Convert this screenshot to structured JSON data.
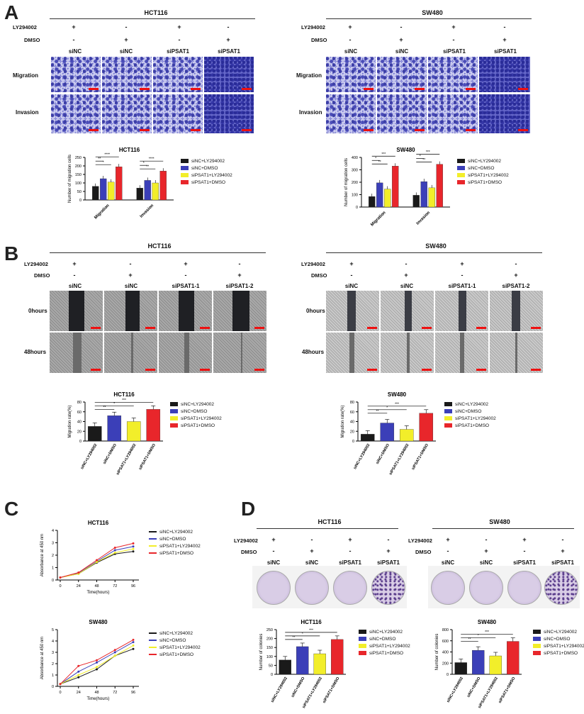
{
  "panels": {
    "a": "A",
    "b": "B",
    "c": "C",
    "d": "D"
  },
  "treatments": {
    "ly_label": "LY294002",
    "dmso_label": "DMSO",
    "ly_signs": [
      "+",
      "-",
      "+",
      "-"
    ],
    "dmso_signs": [
      "-",
      "+",
      "-",
      "+"
    ]
  },
  "A": {
    "hct_title": "HCT116",
    "sw_title": "SW480",
    "cols": [
      "siNC",
      "siNC",
      "siPSAT1",
      "siPSAT1"
    ],
    "rows": [
      "Migration",
      "Invasion"
    ]
  },
  "B": {
    "hct_title": "HCT116",
    "sw_title": "SW480",
    "cols": [
      "siNC",
      "siNC",
      "siPSAT1-1",
      "siPSAT1-2"
    ],
    "rows": [
      "0hours",
      "48hours"
    ]
  },
  "D": {
    "hct_title": "HCT116",
    "sw_title": "SW480",
    "cols": [
      "siNC",
      "siNC",
      "siPSAT1",
      "siPSAT1"
    ]
  },
  "legend": {
    "labels": [
      "siNC+LY294002",
      "siNC+DMSO",
      "siPSAT1+LY294002",
      "siPSAT1+DMSO"
    ],
    "colors": [
      "#1a1a1a",
      "#3b3fb8",
      "#f2ee2a",
      "#e8262b"
    ]
  },
  "chart_data": [
    {
      "type": "bar",
      "title": "HCT116",
      "xlabel": "",
      "ylabel": "Number of migration cells",
      "ylim": [
        0,
        250
      ],
      "yticks": [
        0,
        50,
        100,
        150,
        200,
        250
      ],
      "categories": [
        "Migration",
        "Invasion"
      ],
      "series": [
        {
          "name": "siNC+LY294002",
          "values": [
            80,
            70
          ]
        },
        {
          "name": "siNC+DMSO",
          "values": [
            125,
            115
          ]
        },
        {
          "name": "siPSAT1+LY294002",
          "values": [
            105,
            100
          ]
        },
        {
          "name": "siPSAT1+DMSO",
          "values": [
            195,
            170
          ]
        }
      ],
      "annotations": [
        "****",
        "**",
        "*",
        "****",
        "*",
        "**"
      ]
    },
    {
      "type": "bar",
      "title": "SW480",
      "xlabel": "",
      "ylabel": "Number of migration cells",
      "ylim": [
        0,
        400
      ],
      "yticks": [
        0,
        100,
        200,
        300,
        400
      ],
      "categories": [
        "Migration",
        "Invasion"
      ],
      "series": [
        {
          "name": "siNC+LY294002",
          "values": [
            85,
            95
          ]
        },
        {
          "name": "siNC+DMSO",
          "values": [
            195,
            205
          ]
        },
        {
          "name": "siPSAT1+LY294002",
          "values": [
            145,
            155
          ]
        },
        {
          "name": "siPSAT1+DMSO",
          "values": [
            330,
            345
          ]
        }
      ],
      "annotations": [
        "***",
        "*",
        "**",
        "***",
        "*",
        "**"
      ]
    },
    {
      "type": "bar",
      "title": "HCT116",
      "xlabel": "",
      "ylabel": "Migration rate(%)",
      "ylim": [
        0,
        80
      ],
      "yticks": [
        0,
        20,
        40,
        60,
        80
      ],
      "categories": [
        "siNC+LY294002",
        "siNC+DMSO",
        "siPSAT1+LY294002",
        "siPSAT1+DMSO"
      ],
      "values": [
        30,
        52,
        40,
        65
      ],
      "annotations": [
        "***",
        "*",
        "**"
      ]
    },
    {
      "type": "bar",
      "title": "SW480",
      "xlabel": "",
      "ylabel": "Migration rate(%)",
      "ylim": [
        0,
        80
      ],
      "yticks": [
        0,
        20,
        40,
        60,
        80
      ],
      "categories": [
        "siNC+LY294002",
        "siNC+DMSO",
        "siPSAT1+LY294002",
        "siPSAT1+DMSO"
      ],
      "values": [
        14,
        37,
        24,
        57
      ],
      "annotations": [
        "***",
        "*",
        "**"
      ]
    },
    {
      "type": "line",
      "title": "HCT116",
      "xlabel": "Time(hours)",
      "ylabel": "Absorbance at 450 nm",
      "ylim": [
        0,
        4
      ],
      "yticks": [
        0,
        1,
        2,
        3,
        4
      ],
      "x": [
        0,
        24,
        48,
        72,
        96
      ],
      "series": [
        {
          "name": "siNC+LY294002",
          "values": [
            0.2,
            0.5,
            1.4,
            2.1,
            2.3
          ]
        },
        {
          "name": "siNC+DMSO",
          "values": [
            0.2,
            0.55,
            1.5,
            2.4,
            2.7
          ]
        },
        {
          "name": "siPSAT1+LY294002",
          "values": [
            0.2,
            0.5,
            1.45,
            2.2,
            2.5
          ]
        },
        {
          "name": "siPSAT1+DMSO",
          "values": [
            0.2,
            0.6,
            1.6,
            2.6,
            2.95
          ]
        }
      ]
    },
    {
      "type": "line",
      "title": "SW480",
      "xlabel": "Time(hours)",
      "ylabel": "Absorbance at 450 nm",
      "ylim": [
        0,
        5
      ],
      "yticks": [
        0,
        1,
        2,
        3,
        4,
        5
      ],
      "x": [
        0,
        24,
        48,
        72,
        96
      ],
      "series": [
        {
          "name": "siNC+LY294002",
          "values": [
            0.2,
            0.8,
            1.5,
            2.7,
            3.3
          ]
        },
        {
          "name": "siNC+DMSO",
          "values": [
            0.2,
            1.3,
            2.1,
            3.0,
            3.9
          ]
        },
        {
          "name": "siPSAT1+LY294002",
          "values": [
            0.2,
            1.0,
            1.7,
            2.7,
            3.6
          ]
        },
        {
          "name": "siPSAT1+DMSO",
          "values": [
            0.2,
            1.8,
            2.3,
            3.2,
            4.1
          ]
        }
      ]
    },
    {
      "type": "bar",
      "title": "HCT116",
      "xlabel": "",
      "ylabel": "Number of colonies",
      "ylim": [
        0,
        250
      ],
      "yticks": [
        0,
        50,
        100,
        150,
        200,
        250
      ],
      "categories": [
        "siNC+LY294002",
        "siNC+DMSO",
        "siPSAT1+LY294002",
        "siPSAT1+DMSO"
      ],
      "values": [
        80,
        155,
        115,
        195
      ],
      "annotations": [
        "***",
        "*",
        "**"
      ]
    },
    {
      "type": "bar",
      "title": "SW480",
      "xlabel": "",
      "ylabel": "Number of colonies",
      "ylim": [
        0,
        800
      ],
      "yticks": [
        0,
        200,
        400,
        600,
        800
      ],
      "categories": [
        "siNC+LY294002",
        "siNC+DMSO",
        "siPSAT1+LY294002",
        "siPSAT1+DMSO"
      ],
      "values": [
        210,
        430,
        330,
        590
      ],
      "annotations": [
        "***",
        "*",
        "**"
      ]
    }
  ]
}
